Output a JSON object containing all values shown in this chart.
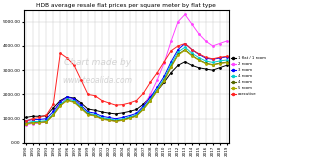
{
  "title": "HDB average resale flat prices per square meter by flat type",
  "years": [
    1990,
    1991,
    1992,
    1993,
    1994,
    1995,
    1996,
    1997,
    1998,
    1999,
    2000,
    2001,
    2002,
    2003,
    2004,
    2005,
    2006,
    2007,
    2008,
    2009,
    2010,
    2011,
    2012,
    2013,
    2014,
    2015,
    2016,
    2017,
    2018,
    2019
  ],
  "series": [
    {
      "label": "1 flat / 1 room",
      "color": "#000000",
      "values": [
        1050,
        1100,
        1100,
        1120,
        1450,
        1750,
        1900,
        1850,
        1650,
        1400,
        1350,
        1280,
        1230,
        1200,
        1240,
        1300,
        1380,
        1600,
        1900,
        2150,
        2500,
        2900,
        3200,
        3350,
        3200,
        3100,
        3050,
        3000,
        3100,
        3200
      ]
    },
    {
      "label": "2 room",
      "color": "#ff44ff",
      "values": [
        750,
        800,
        820,
        860,
        1200,
        1700,
        1850,
        1780,
        1450,
        1180,
        1130,
        1000,
        950,
        900,
        950,
        1050,
        1150,
        1500,
        2000,
        2600,
        3300,
        4200,
        5000,
        5300,
        4900,
        4500,
        4200,
        4000,
        4100,
        4200
      ]
    },
    {
      "label": "3 room",
      "color": "#0000ff",
      "values": [
        920,
        960,
        970,
        1000,
        1300,
        1700,
        1900,
        1820,
        1550,
        1280,
        1230,
        1100,
        1050,
        1000,
        1050,
        1130,
        1220,
        1520,
        1880,
        2300,
        2750,
        3350,
        3850,
        4100,
        3850,
        3650,
        3500,
        3450,
        3500,
        3550
      ]
    },
    {
      "label": "4 room",
      "color": "#00cccc",
      "values": [
        840,
        880,
        890,
        920,
        1200,
        1600,
        1820,
        1740,
        1480,
        1220,
        1170,
        1040,
        990,
        945,
        990,
        1070,
        1160,
        1450,
        1800,
        2220,
        2650,
        3250,
        3750,
        3950,
        3700,
        3520,
        3380,
        3320,
        3380,
        3420
      ]
    },
    {
      "label": "4 room",
      "color": "#556600",
      "values": [
        800,
        840,
        850,
        880,
        1160,
        1550,
        1770,
        1690,
        1440,
        1180,
        1130,
        1000,
        950,
        905,
        950,
        1030,
        1120,
        1400,
        1750,
        2160,
        2580,
        3150,
        3650,
        3850,
        3610,
        3430,
        3290,
        3230,
        3290,
        3330
      ]
    },
    {
      "label": "5 room",
      "color": "#aaaa00",
      "values": [
        780,
        820,
        835,
        865,
        1140,
        1530,
        1750,
        1670,
        1420,
        1160,
        1110,
        980,
        930,
        885,
        930,
        1010,
        1100,
        1380,
        1730,
        2140,
        2560,
        3120,
        3620,
        3820,
        3590,
        3410,
        3270,
        3210,
        3270,
        3310
      ]
    },
    {
      "label": "executive",
      "color": "#ff2222",
      "values": [
        900,
        1000,
        1050,
        1150,
        1600,
        3700,
        3500,
        3200,
        2600,
        2000,
        1950,
        1750,
        1650,
        1560,
        1580,
        1650,
        1750,
        2050,
        2500,
        2900,
        3350,
        3800,
        4000,
        4100,
        3850,
        3680,
        3530,
        3470,
        3530,
        3570
      ]
    }
  ],
  "ylim": [
    0,
    5500
  ],
  "ytick_values": [
    0,
    1000,
    2000,
    3000,
    4000,
    5000
  ],
  "ytick_labels": [
    "0.00",
    "1000.00",
    "2000.00",
    "3000.00",
    "4000.00",
    "5000.00"
  ],
  "bg_color": "#ffffff",
  "grid_color": "#cccccc",
  "watermark1": "Chart made by",
  "watermark2": "www.teoalida.com"
}
